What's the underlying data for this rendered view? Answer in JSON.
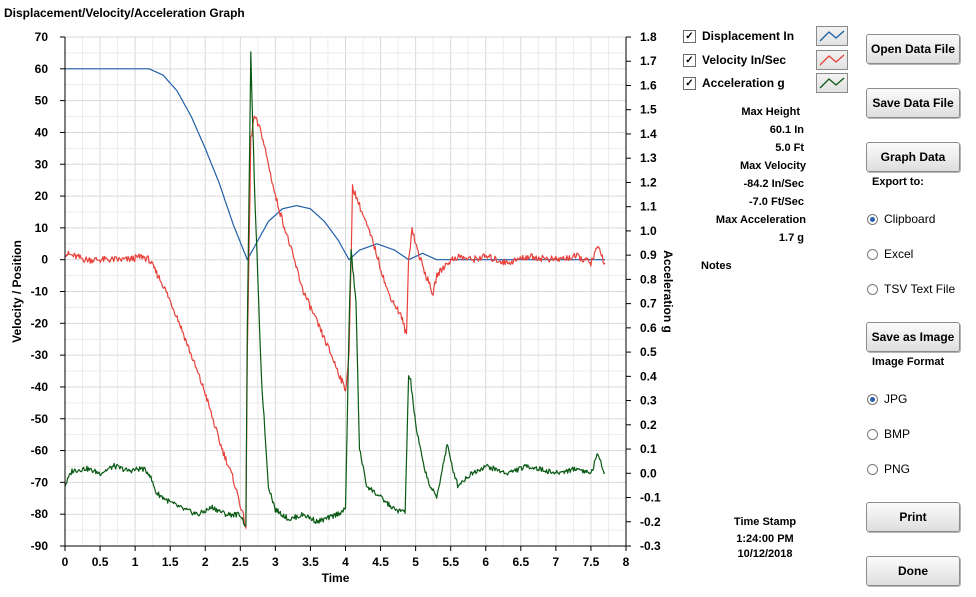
{
  "window": {
    "title": "Displacement/Velocity/Acceleration Graph"
  },
  "chart_data": {
    "type": "line",
    "title": "Displacement/Velocity/Acceleration Graph",
    "xlabel": "Time",
    "ylabel": "Velocity / Position",
    "y2label": "Acceleration g",
    "xlim": [
      0,
      8
    ],
    "ylim": [
      -90,
      70
    ],
    "y2lim": [
      -0.3,
      1.8
    ],
    "x_ticks": [
      "0",
      "0.5",
      "1",
      "1.5",
      "2",
      "2.5",
      "3",
      "3.5",
      "4",
      "4.5",
      "5",
      "5.5",
      "6",
      "6.5",
      "7",
      "7.5",
      "8"
    ],
    "y_ticks": [
      "70",
      "60",
      "50",
      "40",
      "30",
      "20",
      "10",
      "0",
      "-10",
      "-20",
      "-30",
      "-40",
      "-50",
      "-60",
      "-70",
      "-80",
      "-90"
    ],
    "y2_ticks": [
      "1.8",
      "1.7",
      "1.6",
      "1.5",
      "1.4",
      "1.3",
      "1.2",
      "1.1",
      "1.0",
      "0.9",
      "0.8",
      "0.7",
      "0.6",
      "0.5",
      "0.4",
      "0.3",
      "0.2",
      "0.1",
      "0.0",
      "-0.1",
      "-0.2",
      "-0.3"
    ],
    "grid": true,
    "series": [
      {
        "name": "Displacement In",
        "color": "#1f5fa8",
        "axis": "left",
        "points": [
          [
            0,
            60
          ],
          [
            0.5,
            60
          ],
          [
            1,
            60
          ],
          [
            1.2,
            60
          ],
          [
            1.4,
            58
          ],
          [
            1.6,
            53
          ],
          [
            1.8,
            45
          ],
          [
            2,
            35
          ],
          [
            2.2,
            24
          ],
          [
            2.4,
            11
          ],
          [
            2.6,
            0
          ],
          [
            2.75,
            6
          ],
          [
            2.9,
            12
          ],
          [
            3.1,
            16
          ],
          [
            3.3,
            17
          ],
          [
            3.5,
            16
          ],
          [
            3.7,
            12
          ],
          [
            3.9,
            6
          ],
          [
            4.05,
            0
          ],
          [
            4.2,
            3
          ],
          [
            4.45,
            5
          ],
          [
            4.7,
            3
          ],
          [
            4.9,
            0
          ],
          [
            5.1,
            2
          ],
          [
            5.3,
            0
          ],
          [
            5.6,
            0
          ],
          [
            6,
            0
          ],
          [
            6.5,
            0
          ],
          [
            7,
            0
          ],
          [
            7.5,
            0
          ],
          [
            7.7,
            0
          ]
        ]
      },
      {
        "name": "Velocity In/Sec",
        "color": "#e8413c",
        "axis": "left",
        "points": [
          [
            0,
            2
          ],
          [
            0.3,
            0
          ],
          [
            0.6,
            0
          ],
          [
            0.9,
            0
          ],
          [
            1.1,
            1
          ],
          [
            1.2,
            0
          ],
          [
            1.4,
            -8
          ],
          [
            1.6,
            -18
          ],
          [
            1.8,
            -30
          ],
          [
            2,
            -42
          ],
          [
            2.2,
            -57
          ],
          [
            2.4,
            -69
          ],
          [
            2.5,
            -77
          ],
          [
            2.58,
            -84
          ],
          [
            2.6,
            -30
          ],
          [
            2.65,
            38
          ],
          [
            2.7,
            45
          ],
          [
            2.8,
            40
          ],
          [
            3,
            20
          ],
          [
            3.2,
            5
          ],
          [
            3.4,
            -10
          ],
          [
            3.6,
            -20
          ],
          [
            3.8,
            -30
          ],
          [
            4,
            -41
          ],
          [
            4.05,
            -30
          ],
          [
            4.08,
            0
          ],
          [
            4.1,
            23
          ],
          [
            4.2,
            17
          ],
          [
            4.4,
            5
          ],
          [
            4.6,
            -10
          ],
          [
            4.8,
            -18
          ],
          [
            4.87,
            -24
          ],
          [
            4.9,
            0
          ],
          [
            4.95,
            10
          ],
          [
            5,
            5
          ],
          [
            5.1,
            -2
          ],
          [
            5.2,
            -8
          ],
          [
            5.25,
            -11
          ],
          [
            5.3,
            -5
          ],
          [
            5.45,
            -1
          ],
          [
            5.6,
            1
          ],
          [
            5.8,
            0
          ],
          [
            6,
            1
          ],
          [
            6.3,
            -1
          ],
          [
            6.6,
            1
          ],
          [
            7,
            0
          ],
          [
            7.3,
            1
          ],
          [
            7.5,
            -1
          ],
          [
            7.6,
            4
          ],
          [
            7.7,
            -1
          ]
        ]
      },
      {
        "name": "Acceleration g",
        "color": "#0a5a14",
        "axis": "right",
        "points": [
          [
            0,
            -0.05
          ],
          [
            0.1,
            0.01
          ],
          [
            0.3,
            0.02
          ],
          [
            0.5,
            0.0
          ],
          [
            0.7,
            0.03
          ],
          [
            0.9,
            0.01
          ],
          [
            1.1,
            0.02
          ],
          [
            1.2,
            0.0
          ],
          [
            1.3,
            -0.08
          ],
          [
            1.5,
            -0.12
          ],
          [
            1.7,
            -0.15
          ],
          [
            1.9,
            -0.17
          ],
          [
            2.1,
            -0.14
          ],
          [
            2.3,
            -0.17
          ],
          [
            2.5,
            -0.17
          ],
          [
            2.58,
            -0.22
          ],
          [
            2.6,
            0.6
          ],
          [
            2.65,
            1.73
          ],
          [
            2.7,
            1.2
          ],
          [
            2.8,
            0.4
          ],
          [
            2.9,
            -0.05
          ],
          [
            3.0,
            -0.15
          ],
          [
            3.2,
            -0.19
          ],
          [
            3.4,
            -0.17
          ],
          [
            3.6,
            -0.2
          ],
          [
            3.8,
            -0.18
          ],
          [
            4.0,
            -0.15
          ],
          [
            4.05,
            0.6
          ],
          [
            4.08,
            0.92
          ],
          [
            4.15,
            0.7
          ],
          [
            4.2,
            0.1
          ],
          [
            4.3,
            -0.05
          ],
          [
            4.5,
            -0.1
          ],
          [
            4.7,
            -0.15
          ],
          [
            4.85,
            -0.16
          ],
          [
            4.9,
            0.4
          ],
          [
            4.93,
            0.38
          ],
          [
            5.0,
            0.2
          ],
          [
            5.1,
            0.05
          ],
          [
            5.2,
            -0.05
          ],
          [
            5.3,
            -0.1
          ],
          [
            5.45,
            0.12
          ],
          [
            5.5,
            0.05
          ],
          [
            5.6,
            -0.05
          ],
          [
            5.8,
            0.0
          ],
          [
            6,
            0.03
          ],
          [
            6.3,
            0.0
          ],
          [
            6.6,
            0.03
          ],
          [
            7,
            0.0
          ],
          [
            7.3,
            0.02
          ],
          [
            7.5,
            0.0
          ],
          [
            7.6,
            0.08
          ],
          [
            7.7,
            0.0
          ]
        ]
      }
    ]
  },
  "legend": {
    "items": [
      {
        "label": "Displacement In",
        "checked": true,
        "color": "#1f5fa8"
      },
      {
        "label": "Velocity In/Sec",
        "checked": true,
        "color": "#e8413c"
      },
      {
        "label": "Acceleration g",
        "checked": true,
        "color": "#0a5a14"
      }
    ],
    "check_glyph": "✓"
  },
  "stats": {
    "max_height_label": "Max Height",
    "max_height_in": "60.1 In",
    "max_height_ft": "5.0 Ft",
    "max_velocity_label": "Max Velocity",
    "max_velocity_in": "-84.2 In/Sec",
    "max_velocity_ft": "-7.0 Ft/Sec",
    "max_accel_label": "Max Acceleration",
    "max_accel_value": "1.7 g",
    "notes_label": "Notes"
  },
  "timestamp": {
    "label": "Time Stamp",
    "time": "1:24:00 PM",
    "date": "10/12/2018"
  },
  "buttons": {
    "open": "Open Data File",
    "save": "Save Data File",
    "graph": "Graph Data",
    "save_image": "Save as Image",
    "print": "Print",
    "done": "Done"
  },
  "export": {
    "label": "Export to:",
    "options": [
      {
        "label": "Clipboard",
        "selected": true
      },
      {
        "label": "Excel",
        "selected": false
      },
      {
        "label": "TSV Text File",
        "selected": false
      }
    ]
  },
  "image_format": {
    "label": "Image Format",
    "options": [
      {
        "label": "JPG",
        "selected": true
      },
      {
        "label": "BMP",
        "selected": false
      },
      {
        "label": "PNG",
        "selected": false
      }
    ]
  }
}
